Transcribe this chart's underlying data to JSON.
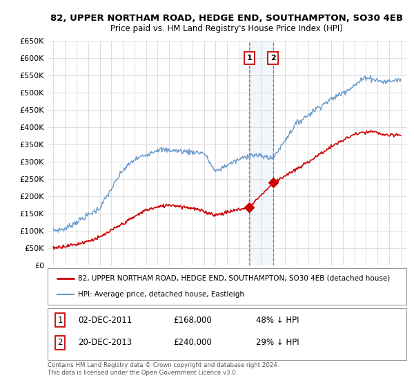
{
  "title": "82, UPPER NORTHAM ROAD, HEDGE END, SOUTHAMPTON, SO30 4EB",
  "subtitle": "Price paid vs. HM Land Registry's House Price Index (HPI)",
  "red_label": "82, UPPER NORTHAM ROAD, HEDGE END, SOUTHAMPTON, SO30 4EB (detached house)",
  "blue_label": "HPI: Average price, detached house, Eastleigh",
  "footnote": "Contains HM Land Registry data © Crown copyright and database right 2024.\nThis data is licensed under the Open Government Licence v3.0.",
  "marker1_date": "02-DEC-2011",
  "marker1_price": 168000,
  "marker1_pct": "48% ↓ HPI",
  "marker2_date": "20-DEC-2013",
  "marker2_price": 240000,
  "marker2_pct": "29% ↓ HPI",
  "ylim": [
    0,
    650000
  ],
  "yticks": [
    0,
    50000,
    100000,
    150000,
    200000,
    250000,
    300000,
    350000,
    400000,
    450000,
    500000,
    550000,
    600000,
    650000
  ],
  "red_color": "#cc0000",
  "blue_color": "#6699cc",
  "grid_color": "#dddddd",
  "highlight_x1": 2011.92,
  "highlight_x2": 2013.97,
  "xlim_left": 1994.5,
  "xlim_right": 2025.5
}
